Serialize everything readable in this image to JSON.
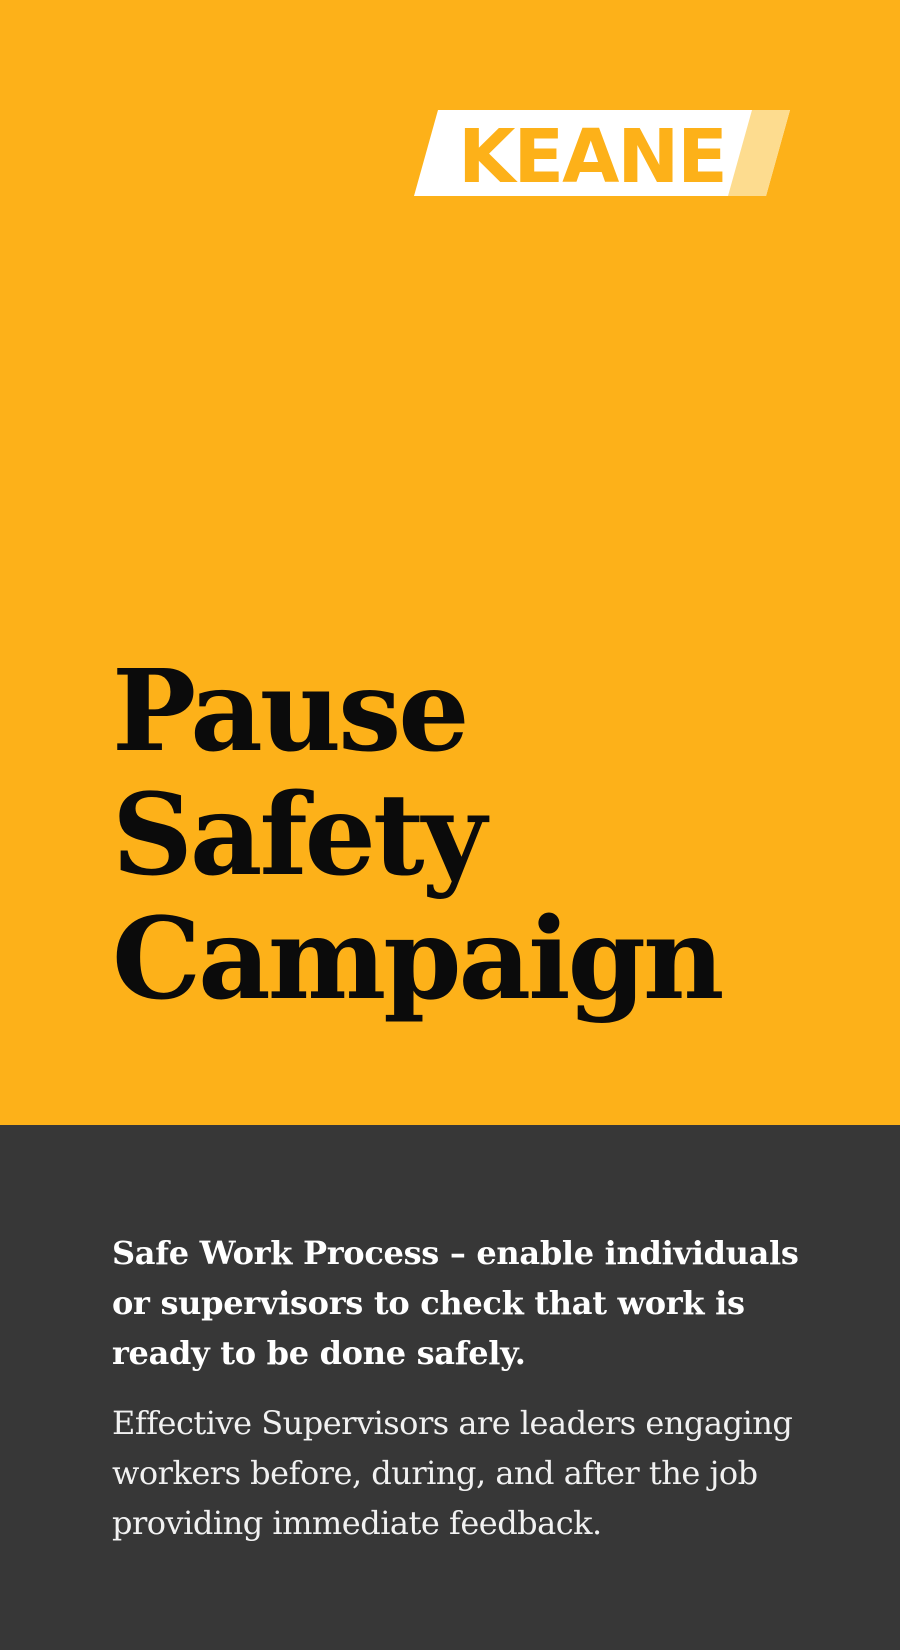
{
  "brand": {
    "logo_text": "KEANE",
    "colors": {
      "primary_yellow": "#FDB119",
      "dark_gray": "#373737",
      "text_black": "#0b0b0b",
      "text_white": "#ffffff"
    }
  },
  "headline": {
    "lines": [
      "Pause",
      "Safety",
      "Campaign"
    ]
  },
  "info": {
    "lead": "Safe Work Process – enable individuals or supervisors to check that work is ready to be done safely.",
    "body": "Effective Supervisors are leaders engaging workers before, during, and after the job providing immediate feedback."
  }
}
